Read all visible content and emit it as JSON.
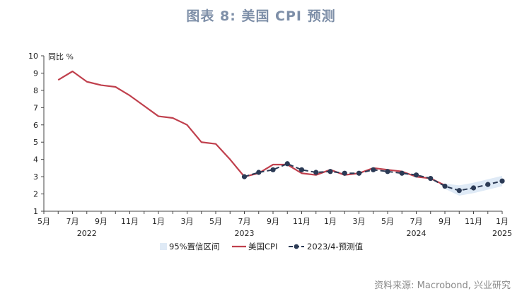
{
  "title": "图表 8:  美国 CPI 预测",
  "source": "资料来源: Macrobond, 兴业研究",
  "chart_data": {
    "type": "line",
    "y_unit_label": "同比 %",
    "ylim": [
      1,
      10
    ],
    "yticks": [
      1,
      2,
      3,
      4,
      5,
      6,
      7,
      8,
      9,
      10
    ],
    "x_range": [
      "2022-05-01",
      "2025-01-01"
    ],
    "x_tick_labels": [
      {
        "date": "2022-05-01",
        "label": "5月"
      },
      {
        "date": "2022-07-01",
        "label": "7月"
      },
      {
        "date": "2022-09-01",
        "label": "9月"
      },
      {
        "date": "2022-11-01",
        "label": "11月"
      },
      {
        "date": "2023-01-01",
        "label": "1月"
      },
      {
        "date": "2023-03-01",
        "label": "3月"
      },
      {
        "date": "2023-05-01",
        "label": "5月"
      },
      {
        "date": "2023-07-01",
        "label": "7月"
      },
      {
        "date": "2023-09-01",
        "label": "9月"
      },
      {
        "date": "2023-11-01",
        "label": "11月"
      },
      {
        "date": "2024-01-01",
        "label": "1月"
      },
      {
        "date": "2024-03-01",
        "label": "3月"
      },
      {
        "date": "2024-05-01",
        "label": "5月"
      },
      {
        "date": "2024-07-01",
        "label": "7月"
      },
      {
        "date": "2024-09-01",
        "label": "9月"
      },
      {
        "date": "2024-11-01",
        "label": "11月"
      },
      {
        "date": "2025-01-01",
        "label": "1月"
      }
    ],
    "year_labels": [
      {
        "date": "2022-08-01",
        "label": "2022"
      },
      {
        "date": "2023-07-01",
        "label": "2023"
      },
      {
        "date": "2024-07-01",
        "label": "2024"
      },
      {
        "date": "2025-01-01",
        "label": "2025"
      }
    ],
    "legend": [
      "95%置信区间",
      "美国CPI",
      "2023/4-预测值"
    ],
    "colors": {
      "cpi": "#c0404d",
      "forecast": "#2b3a55",
      "band": "#dfeaf6",
      "axis": "#444444"
    },
    "series": [
      {
        "name": "美国CPI",
        "style": "solid",
        "x": [
          "2022-06-01",
          "2022-07-01",
          "2022-08-01",
          "2022-09-01",
          "2022-10-01",
          "2022-11-01",
          "2022-12-01",
          "2023-01-01",
          "2023-02-01",
          "2023-03-01",
          "2023-04-01",
          "2023-05-01",
          "2023-06-01",
          "2023-07-01",
          "2023-08-01",
          "2023-09-01",
          "2023-10-01",
          "2023-11-01",
          "2023-12-01",
          "2024-01-01",
          "2024-02-01",
          "2024-03-01",
          "2024-04-01",
          "2024-05-01",
          "2024-06-01",
          "2024-07-01",
          "2024-08-01",
          "2024-09-01"
        ],
        "y": [
          8.6,
          9.1,
          8.5,
          8.3,
          8.2,
          7.7,
          7.1,
          6.5,
          6.4,
          6.0,
          5.0,
          4.9,
          4.0,
          3.0,
          3.2,
          3.7,
          3.7,
          3.2,
          3.1,
          3.4,
          3.1,
          3.2,
          3.5,
          3.4,
          3.3,
          3.0,
          2.9,
          2.5
        ]
      },
      {
        "name": "2023/4-预测值",
        "style": "dashed-markers",
        "x": [
          "2023-07-01",
          "2023-08-01",
          "2023-09-01",
          "2023-10-01",
          "2023-11-01",
          "2023-12-01",
          "2024-01-01",
          "2024-02-01",
          "2024-03-01",
          "2024-04-01",
          "2024-05-01",
          "2024-06-01",
          "2024-07-01",
          "2024-08-01",
          "2024-09-01",
          "2024-10-01",
          "2024-11-01",
          "2024-12-01",
          "2025-01-01"
        ],
        "y": [
          3.0,
          3.25,
          3.4,
          3.75,
          3.4,
          3.25,
          3.3,
          3.2,
          3.2,
          3.4,
          3.3,
          3.2,
          3.1,
          2.9,
          2.45,
          2.2,
          2.35,
          2.55,
          2.75
        ]
      }
    ],
    "confidence_band": {
      "name": "95%置信区间",
      "x": [
        "2024-09-01",
        "2024-10-01",
        "2024-11-01",
        "2024-12-01",
        "2025-01-01"
      ],
      "lower": [
        2.3,
        1.9,
        2.05,
        2.25,
        2.45
      ],
      "upper": [
        2.6,
        2.5,
        2.65,
        2.85,
        3.05
      ]
    }
  }
}
